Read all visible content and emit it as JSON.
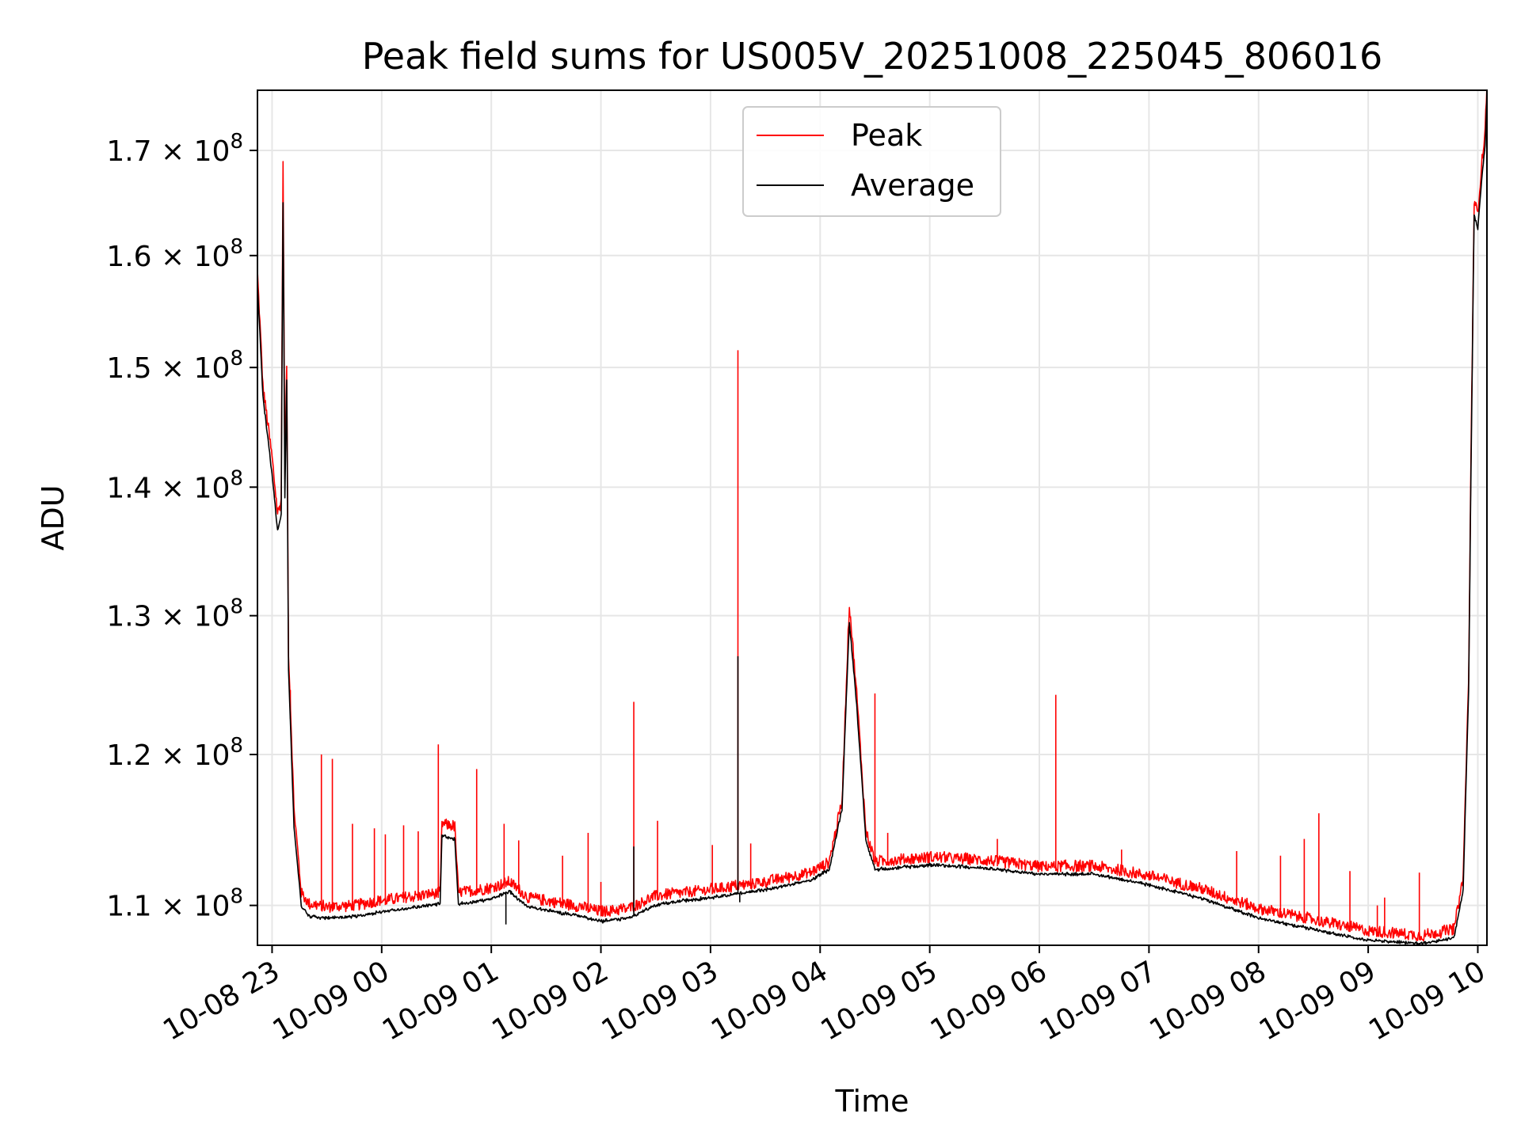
{
  "chart_data": {
    "type": "line",
    "title": "Peak field sums for US005V_20251008_225045_806016",
    "xlabel": "Time",
    "ylabel": "ADU",
    "x_axis": {
      "kind": "datetime",
      "range": [
        "2025-10-08T22:52:00",
        "2025-10-09T10:05:00"
      ],
      "ticks": [
        {
          "value": "2025-10-08T23:00",
          "label": "10-08 23"
        },
        {
          "value": "2025-10-09T00:00",
          "label": "10-09 00"
        },
        {
          "value": "2025-10-09T01:00",
          "label": "10-09 01"
        },
        {
          "value": "2025-10-09T02:00",
          "label": "10-09 02"
        },
        {
          "value": "2025-10-09T03:00",
          "label": "10-09 03"
        },
        {
          "value": "2025-10-09T04:00",
          "label": "10-09 04"
        },
        {
          "value": "2025-10-09T05:00",
          "label": "10-09 05"
        },
        {
          "value": "2025-10-09T06:00",
          "label": "10-09 06"
        },
        {
          "value": "2025-10-09T07:00",
          "label": "10-09 07"
        },
        {
          "value": "2025-10-09T08:00",
          "label": "10-09 08"
        },
        {
          "value": "2025-10-09T09:00",
          "label": "10-09 09"
        },
        {
          "value": "2025-10-09T10:00",
          "label": "10-09 10"
        }
      ]
    },
    "y_axis": {
      "scale": "log",
      "range": [
        107500000,
        176000000
      ],
      "ticks": [
        {
          "value": 110000000,
          "mantissa": "1.1",
          "exponent": "8"
        },
        {
          "value": 120000000,
          "mantissa": "1.2",
          "exponent": "8"
        },
        {
          "value": 130000000,
          "mantissa": "1.3",
          "exponent": "8"
        },
        {
          "value": 140000000,
          "mantissa": "1.4",
          "exponent": "8"
        },
        {
          "value": 150000000,
          "mantissa": "1.5",
          "exponent": "8"
        },
        {
          "value": 160000000,
          "mantissa": "1.6",
          "exponent": "8"
        },
        {
          "value": 170000000,
          "mantissa": "1.7",
          "exponent": "8"
        }
      ]
    },
    "grid": true,
    "legend": {
      "position": "top-center"
    },
    "series": [
      {
        "name": "Peak",
        "color": "#ff0000",
        "baseline": [
          [
            "2025-10-08T22:52",
            158000000
          ],
          [
            "2025-10-08T22:55",
            148000000
          ],
          [
            "2025-10-08T23:00",
            142000000
          ],
          [
            "2025-10-08T23:03",
            137500000
          ],
          [
            "2025-10-08T23:05",
            138500000
          ],
          [
            "2025-10-08T23:06",
            168000000
          ],
          [
            "2025-10-08T23:07",
            140000000
          ],
          [
            "2025-10-08T23:08",
            150000000
          ],
          [
            "2025-10-08T23:09",
            127000000
          ],
          [
            "2025-10-08T23:12",
            116000000
          ],
          [
            "2025-10-08T23:16",
            110500000
          ],
          [
            "2025-10-08T23:20",
            109800000
          ],
          [
            "2025-10-08T23:30",
            109600000
          ],
          [
            "2025-10-08T23:45",
            109700000
          ],
          [
            "2025-10-09T00:00",
            110000000
          ],
          [
            "2025-10-09T00:20",
            110300000
          ],
          [
            "2025-10-09T00:32",
            110500000
          ],
          [
            "2025-10-09T00:33",
            115000000
          ],
          [
            "2025-10-09T00:40",
            114800000
          ],
          [
            "2025-10-09T00:42",
            110500000
          ],
          [
            "2025-10-09T01:00",
            110800000
          ],
          [
            "2025-10-09T01:10",
            111200000
          ],
          [
            "2025-10-09T01:20",
            110200000
          ],
          [
            "2025-10-09T01:30",
            110000000
          ],
          [
            "2025-10-09T01:50",
            109600000
          ],
          [
            "2025-10-09T02:00",
            109300000
          ],
          [
            "2025-10-09T02:15",
            109500000
          ],
          [
            "2025-10-09T02:30",
            110300000
          ],
          [
            "2025-10-09T02:45",
            110500000
          ],
          [
            "2025-10-09T03:00",
            110700000
          ],
          [
            "2025-10-09T03:30",
            111200000
          ],
          [
            "2025-10-09T03:55",
            111800000
          ],
          [
            "2025-10-09T04:05",
            112500000
          ],
          [
            "2025-10-09T04:12",
            116500000
          ],
          [
            "2025-10-09T04:16",
            130500000
          ],
          [
            "2025-10-09T04:20",
            124000000
          ],
          [
            "2025-10-09T04:25",
            114500000
          ],
          [
            "2025-10-09T04:30",
            112500000
          ],
          [
            "2025-10-09T04:40",
            112600000
          ],
          [
            "2025-10-09T05:00",
            112800000
          ],
          [
            "2025-10-09T05:30",
            112600000
          ],
          [
            "2025-10-09T06:00",
            112200000
          ],
          [
            "2025-10-09T06:30",
            112200000
          ],
          [
            "2025-10-09T07:00",
            111600000
          ],
          [
            "2025-10-09T07:30",
            110700000
          ],
          [
            "2025-10-09T08:00",
            109500000
          ],
          [
            "2025-10-09T08:30",
            108800000
          ],
          [
            "2025-10-09T09:00",
            108100000
          ],
          [
            "2025-10-09T09:30",
            107800000
          ],
          [
            "2025-10-09T09:47",
            108200000
          ],
          [
            "2025-10-09T09:52",
            111500000
          ],
          [
            "2025-10-09T09:55",
            125000000
          ],
          [
            "2025-10-09T09:58",
            164500000
          ],
          [
            "2025-10-09T10:00",
            163500000
          ],
          [
            "2025-10-09T10:02",
            168000000
          ],
          [
            "2025-10-09T10:04",
            171500000
          ],
          [
            "2025-10-09T10:05",
            176000000
          ]
        ],
        "spikes": [
          [
            "2025-10-08T23:10",
            122500000
          ],
          [
            "2025-10-08T23:27",
            120000000
          ],
          [
            "2025-10-08T23:33",
            119700000
          ],
          [
            "2025-10-08T23:44",
            115300000
          ],
          [
            "2025-10-08T23:56",
            115000000
          ],
          [
            "2025-10-09T00:02",
            114600000
          ],
          [
            "2025-10-09T00:12",
            115200000
          ],
          [
            "2025-10-09T00:20",
            114800000
          ],
          [
            "2025-10-09T00:31",
            120700000
          ],
          [
            "2025-10-09T00:52",
            119000000
          ],
          [
            "2025-10-09T01:07",
            115300000
          ],
          [
            "2025-10-09T01:15",
            114200000
          ],
          [
            "2025-10-09T01:39",
            113200000
          ],
          [
            "2025-10-09T01:53",
            114700000
          ],
          [
            "2025-10-09T02:00",
            111500000
          ],
          [
            "2025-10-09T02:18",
            123700000
          ],
          [
            "2025-10-09T02:31",
            115500000
          ],
          [
            "2025-10-09T03:01",
            113900000
          ],
          [
            "2025-10-09T03:15",
            151500000
          ],
          [
            "2025-10-09T03:22",
            114000000
          ],
          [
            "2025-10-09T04:30",
            124300000
          ],
          [
            "2025-10-09T04:37",
            114700000
          ],
          [
            "2025-10-09T05:37",
            114300000
          ],
          [
            "2025-10-09T06:09",
            124200000
          ],
          [
            "2025-10-09T06:45",
            113600000
          ],
          [
            "2025-10-09T07:48",
            113500000
          ],
          [
            "2025-10-09T08:12",
            113200000
          ],
          [
            "2025-10-09T08:25",
            114300000
          ],
          [
            "2025-10-09T08:33",
            116000000
          ],
          [
            "2025-10-09T08:50",
            112200000
          ],
          [
            "2025-10-09T09:05",
            110000000
          ],
          [
            "2025-10-09T09:09",
            110500000
          ],
          [
            "2025-10-09T09:28",
            112100000
          ]
        ]
      },
      {
        "name": "Average",
        "color": "#000000",
        "baseline": [
          [
            "2025-10-08T22:52",
            157500000
          ],
          [
            "2025-10-08T22:55",
            147500000
          ],
          [
            "2025-10-08T23:00",
            141000000
          ],
          [
            "2025-10-08T23:03",
            136500000
          ],
          [
            "2025-10-08T23:05",
            137800000
          ],
          [
            "2025-10-08T23:06",
            165000000
          ],
          [
            "2025-10-08T23:07",
            139000000
          ],
          [
            "2025-10-08T23:08",
            149000000
          ],
          [
            "2025-10-08T23:09",
            126000000
          ],
          [
            "2025-10-08T23:12",
            115000000
          ],
          [
            "2025-10-08T23:16",
            110000000
          ],
          [
            "2025-10-08T23:20",
            109300000
          ],
          [
            "2025-10-08T23:30",
            109200000
          ],
          [
            "2025-10-08T23:45",
            109300000
          ],
          [
            "2025-10-09T00:00",
            109600000
          ],
          [
            "2025-10-09T00:20",
            109900000
          ],
          [
            "2025-10-09T00:32",
            110100000
          ],
          [
            "2025-10-09T00:33",
            114500000
          ],
          [
            "2025-10-09T00:40",
            114300000
          ],
          [
            "2025-10-09T00:42",
            110100000
          ],
          [
            "2025-10-09T01:00",
            110400000
          ],
          [
            "2025-10-09T01:10",
            110900000
          ],
          [
            "2025-10-09T01:20",
            109900000
          ],
          [
            "2025-10-09T01:30",
            109700000
          ],
          [
            "2025-10-09T01:50",
            109300000
          ],
          [
            "2025-10-09T02:00",
            109000000
          ],
          [
            "2025-10-09T02:15",
            109200000
          ],
          [
            "2025-10-09T02:30",
            110000000
          ],
          [
            "2025-10-09T02:45",
            110300000
          ],
          [
            "2025-10-09T03:00",
            110500000
          ],
          [
            "2025-10-09T03:30",
            111000000
          ],
          [
            "2025-10-09T03:55",
            111600000
          ],
          [
            "2025-10-09T04:05",
            112300000
          ],
          [
            "2025-10-09T04:12",
            116300000
          ],
          [
            "2025-10-09T04:16",
            129500000
          ],
          [
            "2025-10-09T04:20",
            123500000
          ],
          [
            "2025-10-09T04:25",
            114200000
          ],
          [
            "2025-10-09T04:30",
            112300000
          ],
          [
            "2025-10-09T04:40",
            112400000
          ],
          [
            "2025-10-09T05:00",
            112600000
          ],
          [
            "2025-10-09T05:30",
            112400000
          ],
          [
            "2025-10-09T06:00",
            112000000
          ],
          [
            "2025-10-09T06:30",
            112000000
          ],
          [
            "2025-10-09T07:00",
            111300000
          ],
          [
            "2025-10-09T07:30",
            110400000
          ],
          [
            "2025-10-09T08:00",
            109200000
          ],
          [
            "2025-10-09T08:30",
            108500000
          ],
          [
            "2025-10-09T09:00",
            107800000
          ],
          [
            "2025-10-09T09:30",
            107600000
          ],
          [
            "2025-10-09T09:47",
            108000000
          ],
          [
            "2025-10-09T09:52",
            111000000
          ],
          [
            "2025-10-09T09:55",
            124500000
          ],
          [
            "2025-10-09T09:58",
            163800000
          ],
          [
            "2025-10-09T10:00",
            162500000
          ],
          [
            "2025-10-09T10:02",
            167000000
          ],
          [
            "2025-10-09T10:04",
            170500000
          ],
          [
            "2025-10-09T10:05",
            175500000
          ]
        ],
        "spikes": [
          [
            "2025-10-09T02:18",
            113800000
          ],
          [
            "2025-10-09T03:15",
            127000000
          ],
          [
            "2025-10-09T03:16",
            110200000
          ],
          [
            "2025-10-09T01:08",
            108800000
          ]
        ]
      }
    ]
  }
}
